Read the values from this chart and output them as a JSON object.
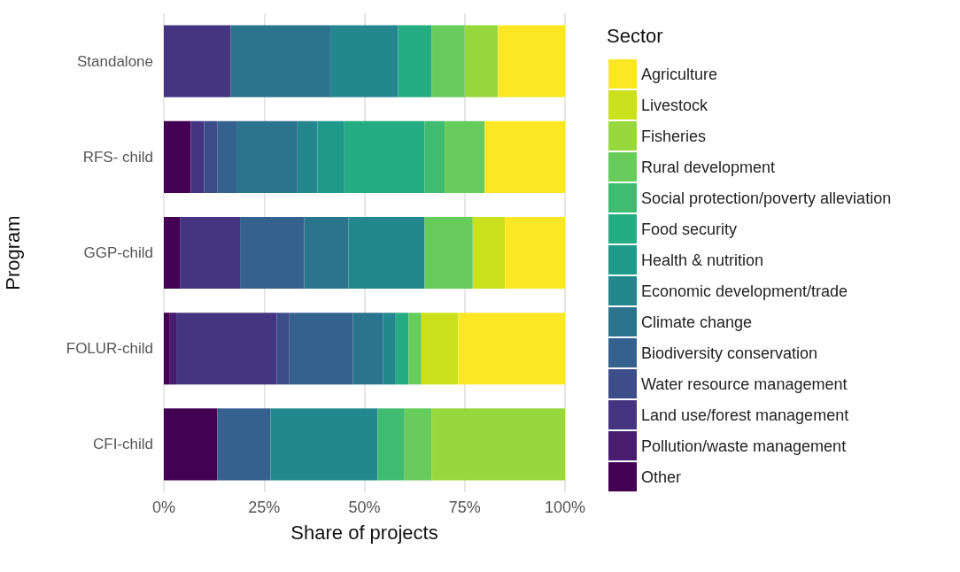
{
  "chart_data": {
    "type": "bar",
    "orientation": "horizontal",
    "stacked": true,
    "xlabel": "Share of projects",
    "ylabel": "Program",
    "legend_title": "Sector",
    "categories": [
      "Standalone",
      "RFS- child",
      "GGP-child",
      "FOLUR-child",
      "CFI-child"
    ],
    "xlim": [
      0,
      100
    ],
    "xticks": [
      {
        "value": 0,
        "label": "0%"
      },
      {
        "value": 25,
        "label": "25%"
      },
      {
        "value": 50,
        "label": "50%"
      },
      {
        "value": 75,
        "label": "75%"
      },
      {
        "value": 100,
        "label": "100%"
      }
    ],
    "grid": "x",
    "legend": "right",
    "series": [
      {
        "name": "Other",
        "color": "#440154",
        "values": [
          null,
          6.7,
          4,
          1.5,
          13.3
        ]
      },
      {
        "name": "Pollution/waste management",
        "color": "#481c6e",
        "values": [
          null,
          null,
          null,
          1.6,
          null
        ]
      },
      {
        "name": "Land use/forest management",
        "color": "#453581",
        "values": [
          16.7,
          3.3,
          15,
          25,
          null
        ]
      },
      {
        "name": "Water resource management",
        "color": "#3d4d8a",
        "values": [
          null,
          3.3,
          null,
          3.2,
          null
        ]
      },
      {
        "name": "Biodiversity conservation",
        "color": "#34618d",
        "values": [
          null,
          5,
          16,
          15.8,
          13.3
        ]
      },
      {
        "name": "Climate change",
        "color": "#2b748e",
        "values": [
          25,
          15,
          11,
          7.5,
          null
        ]
      },
      {
        "name": "Economic development/trade",
        "color": "#24878e",
        "values": [
          16.7,
          5,
          19,
          3.2,
          26.7
        ]
      },
      {
        "name": "Health & nutrition",
        "color": "#1f998a",
        "values": [
          null,
          6.7,
          null,
          null,
          null
        ]
      },
      {
        "name": "Food security",
        "color": "#25ac82",
        "values": [
          8.3,
          20,
          null,
          3.2,
          null
        ]
      },
      {
        "name": "Social protection/poverty alleviation",
        "color": "#40bc72",
        "values": [
          null,
          5,
          null,
          null,
          6.7
        ]
      },
      {
        "name": "Rural development",
        "color": "#67cc5c",
        "values": [
          8.3,
          10,
          12,
          3.2,
          6.7
        ]
      },
      {
        "name": "Fisheries",
        "color": "#97d83f",
        "values": [
          8.3,
          null,
          null,
          null,
          33.3
        ]
      },
      {
        "name": "Livestock",
        "color": "#cbe11e",
        "values": [
          null,
          null,
          8,
          9.2,
          null
        ]
      },
      {
        "name": "Agriculture",
        "color": "#fde725",
        "values": [
          16.7,
          20,
          15,
          26.6,
          null
        ]
      }
    ]
  }
}
